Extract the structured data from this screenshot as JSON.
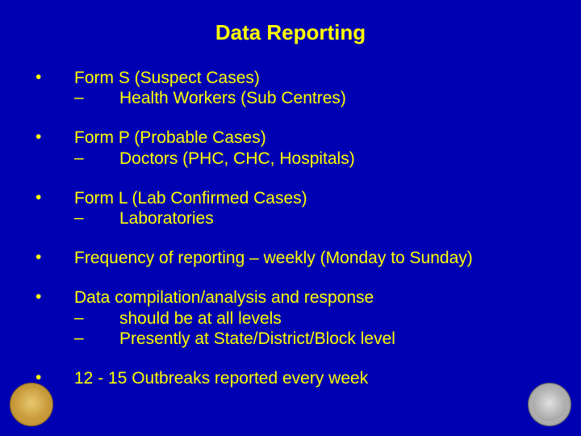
{
  "title": "Data Reporting",
  "bullets": [
    {
      "text": "Form S (Suspect Cases)",
      "subs": [
        {
          "text": "Health Workers (Sub Centres)"
        }
      ]
    },
    {
      "text": "Form P (Probable Cases)",
      "subs": [
        {
          "text": "Doctors (PHC, CHC, Hospitals)"
        }
      ]
    },
    {
      "text": "Form L (Lab Confirmed Cases)",
      "subs": [
        {
          "text": "Laboratories"
        }
      ]
    },
    {
      "text": "Frequency of reporting – weekly (Monday to Sunday)",
      "subs": []
    },
    {
      "text": "Data compilation/analysis and response",
      "subs": [
        {
          "text": "should be at all levels"
        },
        {
          "text": "Presently at State/District/Block level"
        }
      ]
    },
    {
      "text": "12 - 15 Outbreaks reported every week",
      "subs": []
    }
  ],
  "colors": {
    "background": "#0000b3",
    "text": "#ffff00"
  },
  "typography": {
    "title_fontsize": 26,
    "body_fontsize": 21,
    "font_family": "Arial"
  }
}
